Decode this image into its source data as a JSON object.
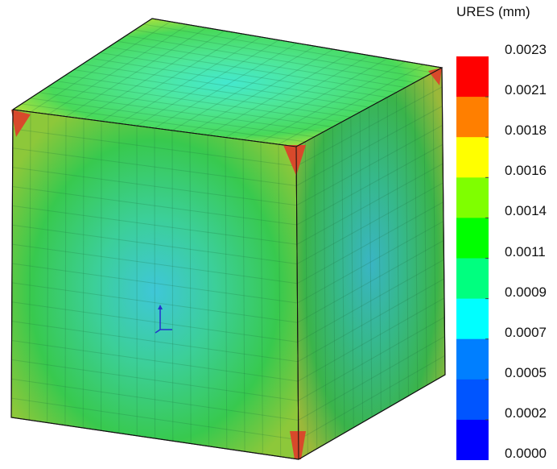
{
  "legend": {
    "title": "URES (mm)",
    "labels": [
      "0.0023",
      "0.0021",
      "0.0018",
      "0.0016",
      "0.0014",
      "0.0011",
      "0.0009",
      "0.0007",
      "0.0005",
      "0.0002",
      "0.0000"
    ],
    "colors": [
      "#ff0000",
      "#ff7f00",
      "#ffff00",
      "#7fff00",
      "#00ff00",
      "#00ff7f",
      "#00ffff",
      "#007fff",
      "#0055ff",
      "#0000ff"
    ]
  },
  "model": {
    "palette": {
      "top_center": "#44e8cf",
      "top_mid": "#4ee79a",
      "top_outer": "#48d95a",
      "top_edge": "#b6e23b",
      "front_center": "#3fc7d8",
      "front_mid": "#3ccf99",
      "front_outer": "#38c94e",
      "front_edge": "#8dc83a",
      "right_center": "#3ab5c4",
      "right_mid": "#36b88b",
      "right_outer": "#3ab44a",
      "right_edge": "#9cb83a",
      "corner_hot": "#d8492b",
      "axis_color": "#2233cc"
    }
  }
}
